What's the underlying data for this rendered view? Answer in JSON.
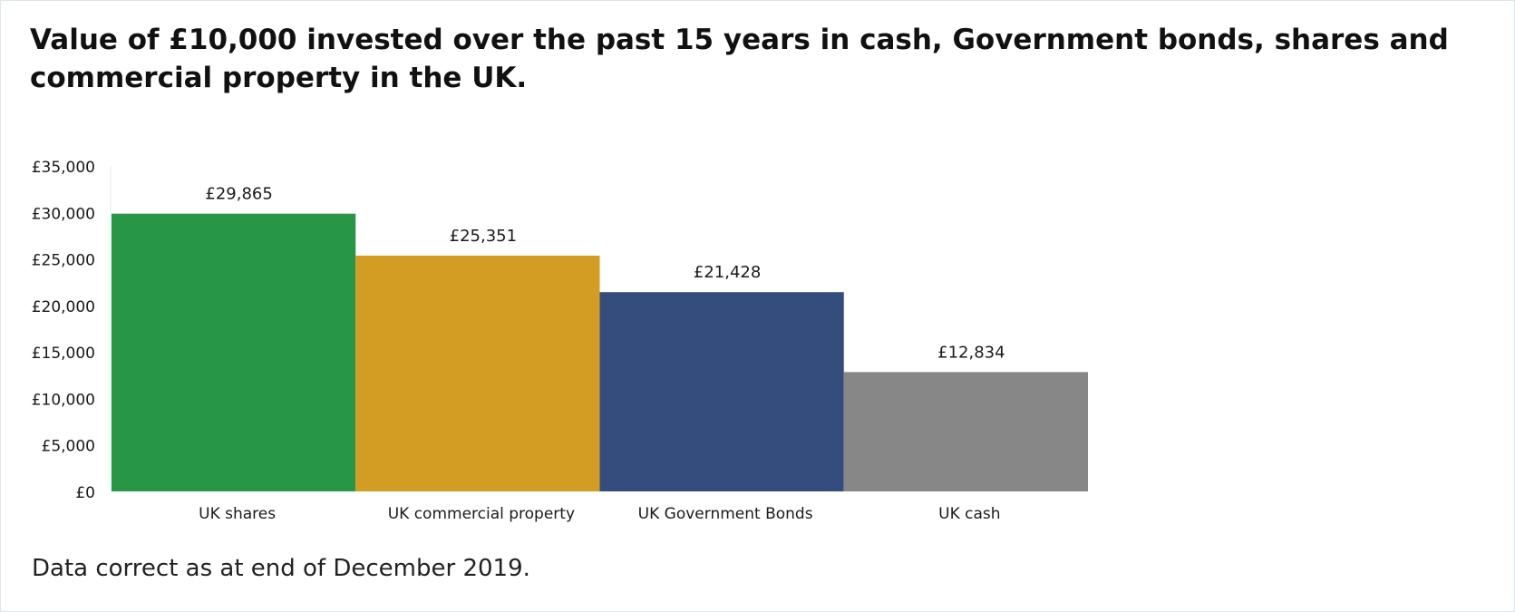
{
  "chart_data": {
    "type": "bar",
    "title": "Value of £10,000 invested over the past 15 years in cash, Government bonds, shares and commercial property in the UK.",
    "categories": [
      "UK shares",
      "UK commercial property",
      "UK Government Bonds",
      "UK cash"
    ],
    "values": [
      29865,
      25351,
      21428,
      12834
    ],
    "value_labels": [
      "£29,865",
      "£25,351",
      "£21,428",
      "£12,834"
    ],
    "colors": [
      "#279646",
      "#d39d24",
      "#344d7c",
      "#878787"
    ],
    "ylim": [
      0,
      35000
    ],
    "yticks": [
      0,
      5000,
      10000,
      15000,
      20000,
      25000,
      30000,
      35000
    ],
    "ytick_labels": [
      "£0",
      "£5,000",
      "£10,000",
      "£15,000",
      "£20,000",
      "£25,000",
      "£30,000",
      "£35,000"
    ],
    "xlabel": "",
    "ylabel": "",
    "grid": false,
    "legend": "none"
  },
  "footnote": "Data correct as at end of December 2019."
}
